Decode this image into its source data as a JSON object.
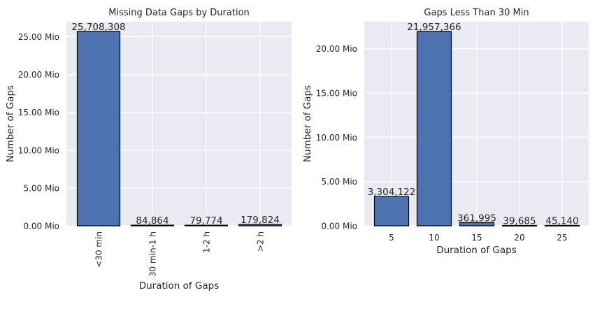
{
  "chart_data": [
    {
      "type": "bar",
      "title": "Missing Data Gaps by Duration",
      "xlabel": "Duration of Gaps",
      "ylabel": "Number of Gaps",
      "categories": [
        "<30 min",
        "30 min-1 h",
        "1-2 h",
        ">2 h"
      ],
      "values": [
        25708308,
        84864,
        79774,
        179824
      ],
      "data_labels": [
        "25,708,308",
        "84,864",
        "79,774",
        "179,824"
      ],
      "ylim": [
        0,
        26990000
      ],
      "yticks": [
        0,
        5000000,
        10000000,
        15000000,
        20000000,
        25000000
      ],
      "ytick_labels": [
        "0.00 Mio",
        "5.00 Mio",
        "10.00 Mio",
        "15.00 Mio",
        "20.00 Mio",
        "25.00 Mio"
      ],
      "xtick_rotation": "vertical",
      "grid": true,
      "bar_color": "#4c72b0",
      "edge_color": "#000000",
      "background": "#eaeaf2"
    },
    {
      "type": "bar",
      "title": "Gaps Less Than 30 Min",
      "xlabel": "Duration of Gaps",
      "ylabel": "Number of Gaps",
      "categories": [
        "5",
        "10",
        "15",
        "20",
        "25"
      ],
      "values": [
        3304122,
        21957366,
        361995,
        39685,
        45140
      ],
      "data_labels": [
        "3,304,122",
        "21,957,366",
        "361,995",
        "39,685",
        "45,140"
      ],
      "ylim": [
        0,
        23050000
      ],
      "yticks": [
        0,
        5000000,
        10000000,
        15000000,
        20000000
      ],
      "ytick_labels": [
        "0.00 Mio",
        "5.00 Mio",
        "10.00 Mio",
        "15.00 Mio",
        "20.00 Mio"
      ],
      "xtick_rotation": "horizontal",
      "grid": true,
      "bar_color": "#4c72b0",
      "edge_color": "#000000",
      "background": "#eaeaf2"
    }
  ]
}
